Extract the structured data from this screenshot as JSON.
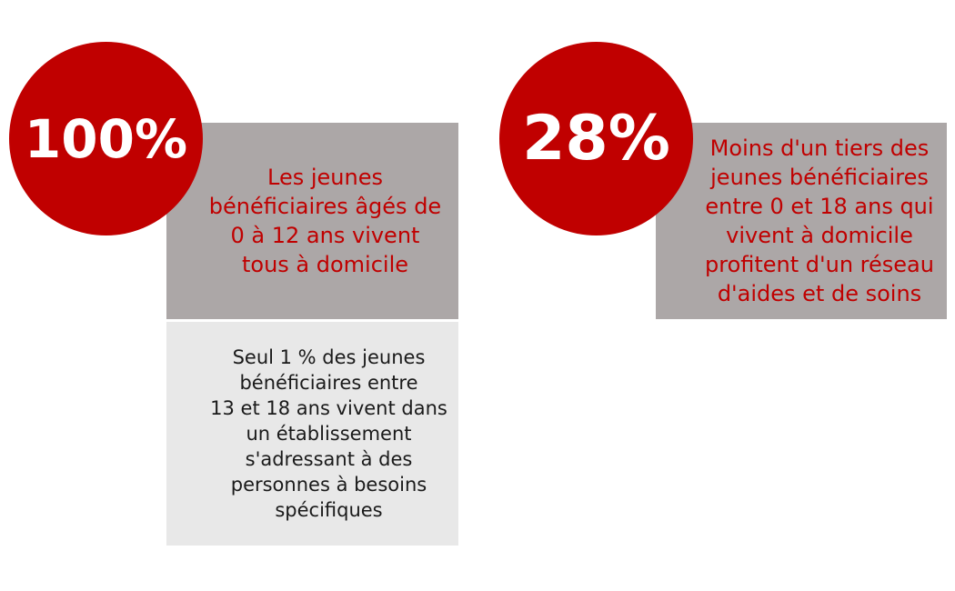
{
  "left": {
    "stat": "100%",
    "headline": "Les jeunes\nbénéficiaires âgés de\n0 à 12 ans vivent\ntous à domicile",
    "detail": "Seul 1 % des jeunes\nbénéficiaires entre\n13 et 18 ans vivent dans\nun établissement\ns'adressant à des\npersonnes à besoins\nspécifiques"
  },
  "right": {
    "stat": "28%",
    "headline": "Moins d'un tiers des\njeunes bénéficiaires\nentre 0 et 18 ans qui\nvivent à domicile\nprofitent d'un réseau\nd'aides et de soins"
  },
  "colors": {
    "accent": "#c00000",
    "box_gray": "#aca7a7",
    "box_light": "#e8e8e8"
  }
}
